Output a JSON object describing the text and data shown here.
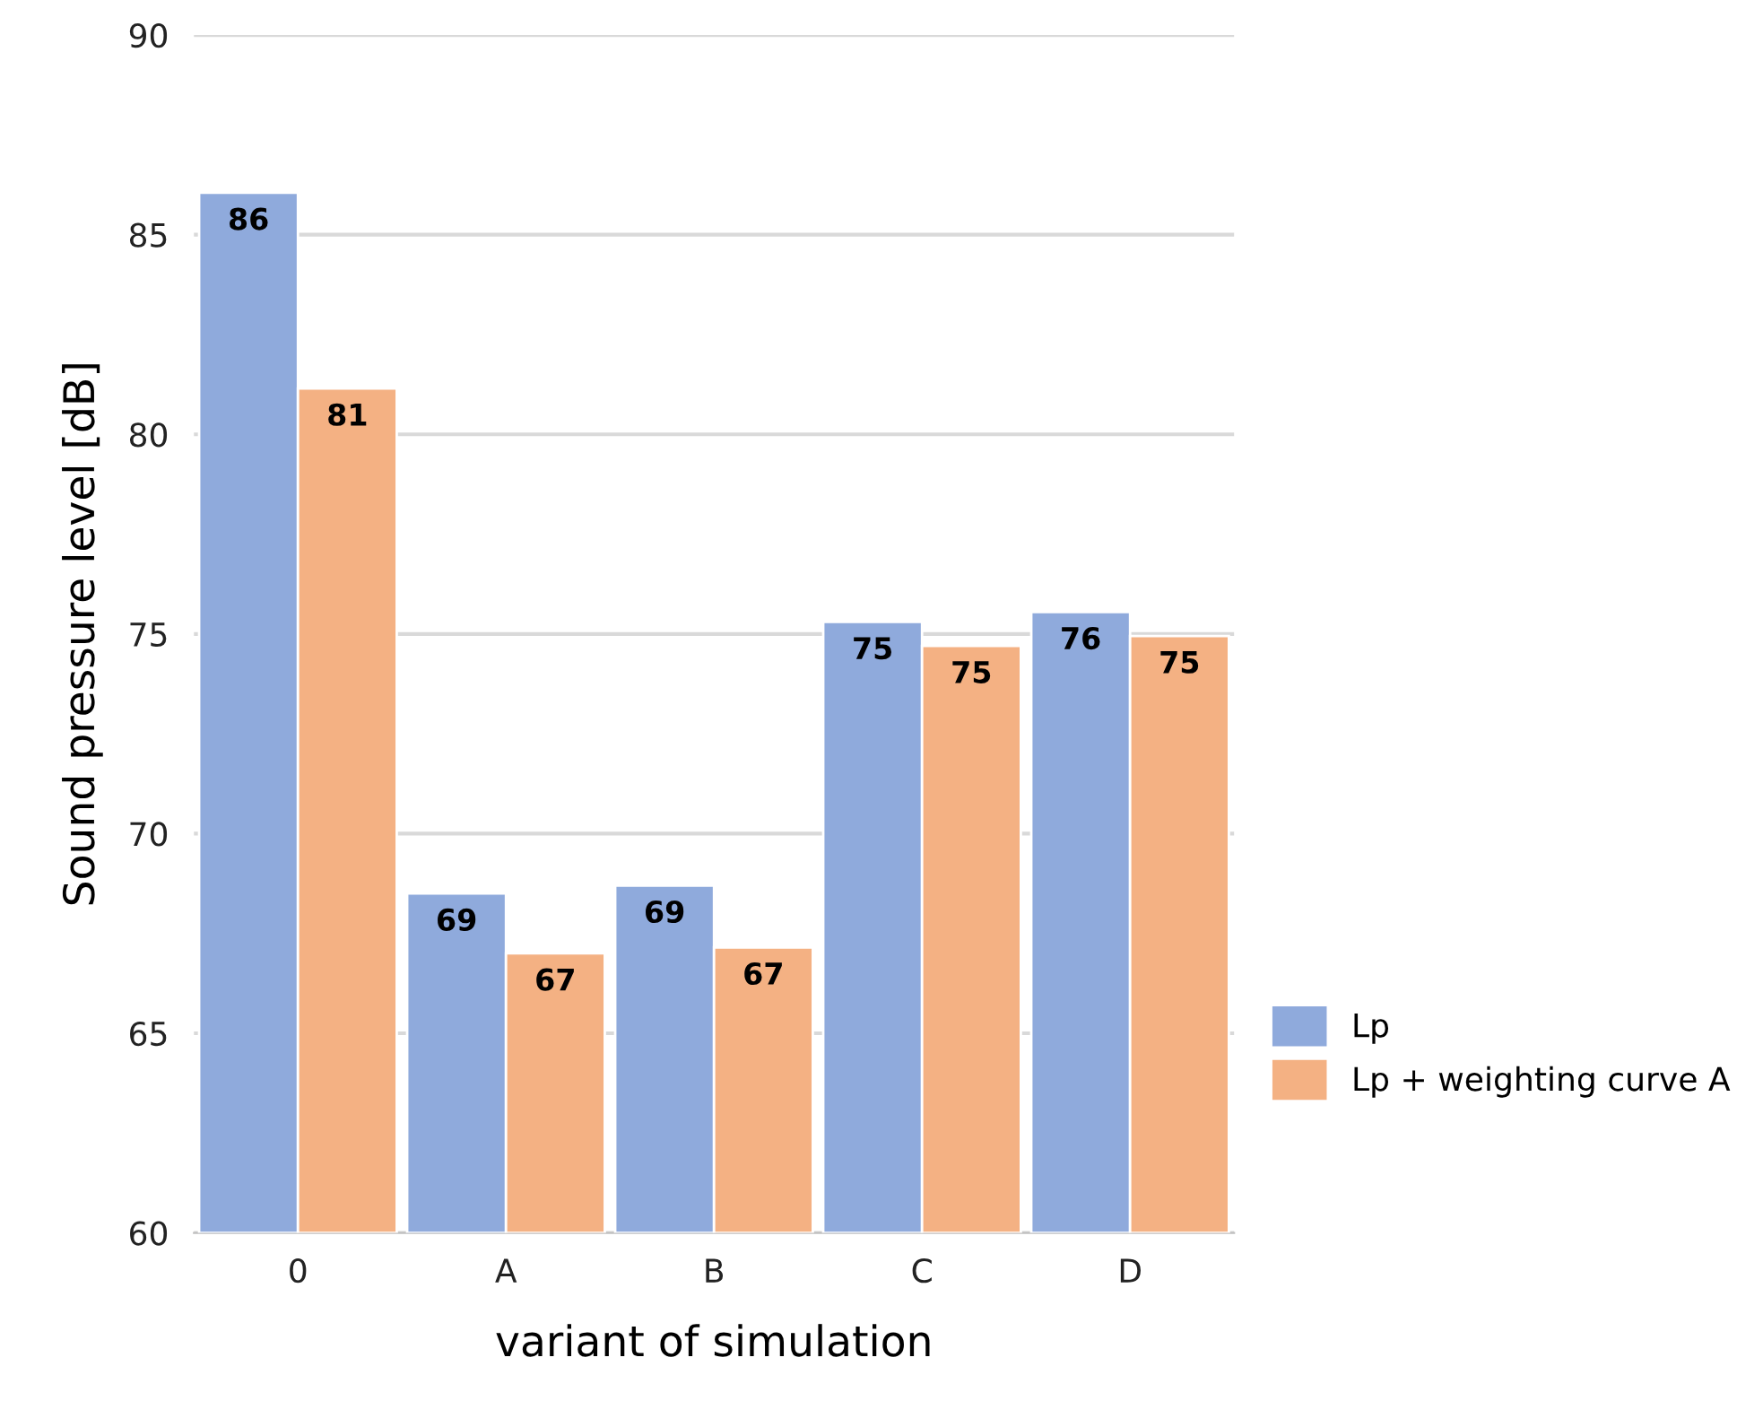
{
  "chart_data": {
    "type": "bar",
    "xlabel": "variant of simulation",
    "ylabel": "Sound pressure level [dB]",
    "categories": [
      "0",
      "A",
      "B",
      "C",
      "D"
    ],
    "series": [
      {
        "name": "Lp",
        "color": "#8faadc",
        "values": [
          86.05,
          68.5,
          68.7,
          75.3,
          75.55
        ],
        "value_labels": [
          "86",
          "69",
          "69",
          "75",
          "76"
        ]
      },
      {
        "name": "Lp + weighting curve A",
        "color": "#f4b183",
        "values": [
          81.15,
          67.0,
          67.15,
          74.7,
          74.95
        ],
        "value_labels": [
          "81",
          "67",
          "67",
          "75",
          "75"
        ]
      }
    ],
    "ylim": [
      60,
      90
    ],
    "yticks": [
      60,
      65,
      70,
      75,
      80,
      85,
      90
    ],
    "grid": "y",
    "legend": "right"
  }
}
